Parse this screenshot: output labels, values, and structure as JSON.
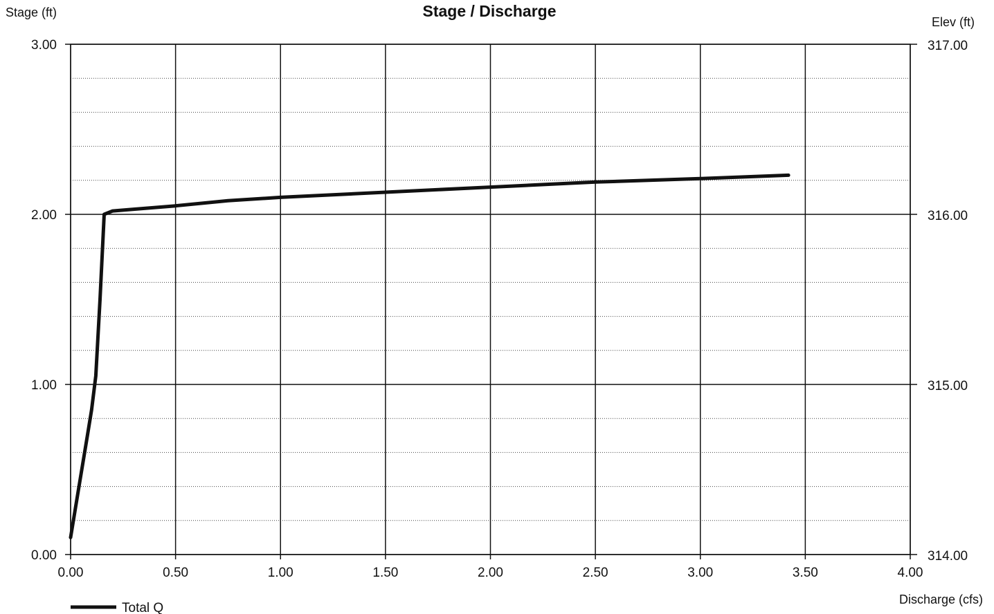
{
  "chart_data": {
    "type": "line",
    "title": "Stage / Discharge",
    "xlabel": "Discharge (cfs)",
    "ylabel": "Stage (ft)",
    "y2label": "Elev (ft)",
    "xlim": [
      0,
      4
    ],
    "ylim": [
      0,
      3
    ],
    "y2lim": [
      314,
      317
    ],
    "x_ticks": [
      "0.00",
      "0.50",
      "1.00",
      "1.50",
      "2.00",
      "2.50",
      "3.00",
      "3.50",
      "4.00"
    ],
    "y_ticks": [
      "0.00",
      "1.00",
      "2.00",
      "3.00"
    ],
    "y2_ticks": [
      "314.00",
      "315.00",
      "316.00",
      "317.00"
    ],
    "grid": true,
    "minor_grid": "dotted horizontal",
    "legend_position": "bottom-left",
    "series": [
      {
        "name": "Total Q",
        "color": "#111111",
        "x": [
          0.0,
          0.04,
          0.08,
          0.1,
          0.12,
          0.14,
          0.16,
          0.2,
          0.3,
          0.5,
          0.75,
          1.0,
          1.5,
          2.0,
          2.5,
          3.0,
          3.42
        ],
        "y": [
          0.1,
          0.4,
          0.7,
          0.85,
          1.05,
          1.5,
          2.0,
          2.02,
          2.03,
          2.05,
          2.08,
          2.1,
          2.13,
          2.16,
          2.19,
          2.21,
          2.23
        ]
      }
    ]
  }
}
